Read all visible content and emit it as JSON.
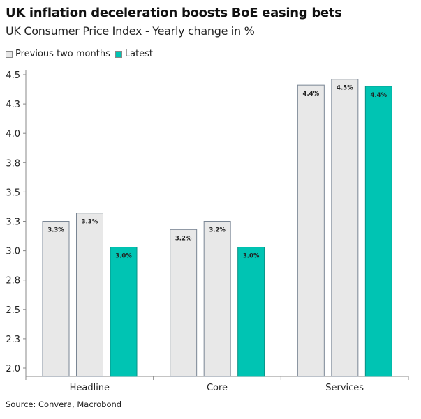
{
  "chart_data": {
    "type": "bar",
    "title": "UK inflation deceleration boosts BoE easing bets",
    "subtitle": "UK Consumer Price Index - Yearly change in %",
    "source": "Source: Convera, Macrobond",
    "categories": [
      "Headline",
      "Core",
      "Services"
    ],
    "series": [
      {
        "name": "Previous two months",
        "values": [
          3.25,
          3.18,
          4.41
        ],
        "labels": [
          "3.3%",
          "3.2%",
          "4.4%"
        ],
        "color": "#e8e8e8"
      },
      {
        "name": "Previous two months",
        "values": [
          3.32,
          3.25,
          4.46
        ],
        "labels": [
          "3.3%",
          "3.2%",
          "4.5%"
        ],
        "color": "#e8e8e8"
      },
      {
        "name": "Latest",
        "values": [
          3.03,
          3.03,
          4.4
        ],
        "labels": [
          "3.0%",
          "3.0%",
          "4.4%"
        ],
        "color": "#00c4b3"
      }
    ],
    "legend": [
      "Previous two months",
      "Latest"
    ],
    "legend_position": "top-left",
    "yticks": [
      "2.0",
      "2.3",
      "2.5",
      "2.8",
      "3.0",
      "3.3",
      "3.5",
      "3.8",
      "4.0",
      "4.3",
      "4.5"
    ],
    "ytick_values": [
      2.0,
      2.25,
      2.5,
      2.75,
      3.0,
      3.25,
      3.5,
      3.75,
      4.0,
      4.25,
      4.5
    ],
    "ylim": [
      1.93,
      4.5
    ],
    "grid": false
  }
}
